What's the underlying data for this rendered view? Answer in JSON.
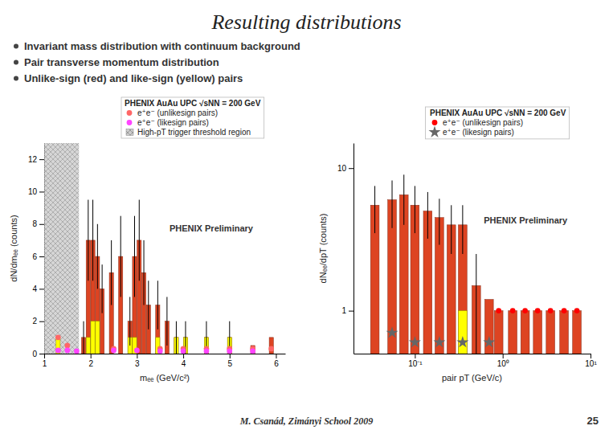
{
  "title": "Resulting distributions",
  "bullets": [
    "Invariant mass distribution with continuum background",
    "Pair transverse momentum distribution",
    "Unlike-sign (red) and like-sign (yellow) pairs"
  ],
  "footer": "M. Csanád, Zimányi School 2009",
  "page_number": "25",
  "chart_data": [
    {
      "type": "bar",
      "xlabel": "mₑₑ (GeV/c²)",
      "ylabel": "dN/dmₑₑ (counts)",
      "annotations": [
        "PHENIX Preliminary"
      ],
      "legend_title": "PHENIX AuAu UPC √sNN = 200 GeV",
      "legend": "top",
      "grid": false,
      "xlim": [
        1.0,
        6.2
      ],
      "xticks": [
        1,
        2,
        3,
        4,
        5,
        6
      ],
      "ylim": [
        0,
        13
      ],
      "yticks": [
        0,
        2,
        4,
        6,
        8,
        10,
        12
      ],
      "series": [
        {
          "type": "bar",
          "color": "#DD4422",
          "x": [
            1.85,
            1.95,
            2.05,
            2.15,
            2.25,
            2.45,
            2.65,
            2.85,
            2.95,
            3.05,
            3.15,
            3.25,
            3.45,
            3.65,
            3.85,
            4.05,
            4.5,
            5.0,
            5.5,
            5.9
          ],
          "values": [
            1.0,
            7.0,
            7.0,
            6.0,
            4.0,
            5.0,
            6.0,
            2.0,
            6.0,
            7.0,
            5.0,
            3.0,
            3.0,
            2.0,
            1.0,
            1.0,
            1.0,
            1.0,
            0.5,
            1.0
          ],
          "errors": [
            1.0,
            2.5,
            2.5,
            2.0,
            1.5,
            2.0,
            2.5,
            1.5,
            2.5,
            2.5,
            2.0,
            1.5,
            1.5,
            1.5,
            1.0,
            1.0,
            1.0,
            1.0,
            null,
            null
          ]
        },
        {
          "type": "bar",
          "color": "yellow",
          "x": [
            1.3,
            1.95,
            2.05,
            2.15,
            2.85,
            2.95,
            3.45,
            3.85,
            4.05,
            4.5,
            5.0
          ],
          "values": [
            1.0,
            1.0,
            2.0,
            2.0,
            1.0,
            1.0,
            1.0,
            1.0,
            1.0,
            1.0,
            1.0
          ]
        },
        {
          "type": "scatter",
          "name": "e⁺e⁻ (unlikesign pairs)",
          "color": "#FF6666",
          "marker": "circle",
          "x": [
            1.3,
            1.5,
            2.5,
            3.5,
            4.0,
            4.5,
            5.0,
            5.5,
            5.9
          ],
          "values": [
            1.0,
            0.5,
            0.3,
            0.3,
            0.3,
            0.3,
            0.3,
            0.3,
            0.3
          ]
        },
        {
          "type": "scatter",
          "name": "e⁺e⁻ (likesign pairs)",
          "color": "#FF44FF",
          "marker": "circle",
          "x": [
            1.3,
            1.5,
            1.7,
            2.5,
            3.0,
            3.5,
            4.0,
            4.5,
            5.0,
            5.5
          ],
          "values": [
            0.2,
            0.2,
            0.15,
            0.2,
            0.2,
            0.15,
            0.15,
            0.15,
            0.15,
            0.15
          ]
        },
        {
          "type": "span",
          "name": "High-pT trigger threshold region",
          "color": "#CCCCCC",
          "values": [
            1.0,
            1.75
          ]
        }
      ]
    },
    {
      "type": "bar",
      "xlabel": "pair pT (GeV/c)",
      "ylabel": "dNₑₑ/dpT (counts)",
      "annotations": [
        "PHENIX Preliminary"
      ],
      "legend_title": "PHENIX AuAu UPC √sNN = 200 GeV",
      "legend": "top",
      "grid": false,
      "log": true,
      "xlim": [
        0.02,
        10
      ],
      "xticks": [
        {
          "value": 0.1,
          "label": "10⁻¹"
        },
        {
          "value": 1,
          "label": "10⁰"
        },
        {
          "value": 10,
          "label": "10¹"
        }
      ],
      "ylim": [
        0.5,
        15
      ],
      "yticks": [
        1,
        10
      ],
      "series": [
        {
          "type": "bar",
          "color": "#DD4422",
          "x": [
            0.035,
            0.055,
            0.075,
            0.1,
            0.14,
            0.19,
            0.26,
            0.35,
            0.5,
            0.7,
            0.9,
            1.3,
            1.8,
            2.5,
            3.5,
            5.0,
            7.0
          ],
          "values": [
            5.5,
            6.0,
            6.5,
            5.5,
            5.0,
            4.5,
            4.0,
            4.0,
            1.5,
            1.2,
            1.0,
            1.0,
            1.0,
            1.0,
            1.0,
            1.0,
            1.0
          ],
          "errors": [
            2.0,
            2.2,
            2.5,
            2.0,
            1.8,
            1.6,
            1.5,
            1.5,
            1.0,
            null,
            null,
            null,
            null,
            null,
            null,
            null,
            null
          ]
        },
        {
          "type": "bar",
          "color": "yellow",
          "x": [
            0.35
          ],
          "values": [
            1.0
          ]
        },
        {
          "type": "scatter",
          "name": "e⁺e⁻ (unlikesign pairs)",
          "color": "red",
          "marker": "circle",
          "x": [
            0.9,
            1.3,
            1.8,
            2.5,
            3.5,
            5.0,
            7.0
          ],
          "values": [
            1.0,
            1.0,
            1.0,
            1.0,
            1.0,
            1.0,
            1.0
          ]
        },
        {
          "type": "scatter",
          "name": "e⁺e⁻ (likesign pairs)",
          "color": "#666666",
          "marker": "star",
          "x": [
            0.055,
            0.1,
            0.19,
            0.35,
            0.7
          ],
          "values": [
            0.7,
            0.6,
            0.6,
            0.6,
            0.6
          ]
        }
      ]
    }
  ]
}
